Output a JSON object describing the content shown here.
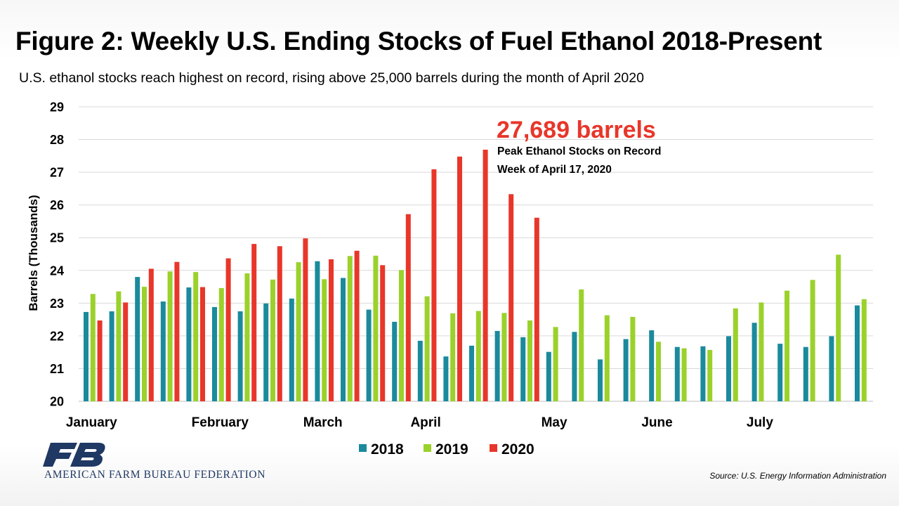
{
  "header": {
    "title": "Figure 2: Weekly U.S. Ending Stocks of Fuel Ethanol 2018-Present",
    "subtitle": "U.S. ethanol stocks reach highest on record, rising above 25,000 barrels during the month of April 2020"
  },
  "footer": {
    "organization": "AMERICAN FARM BUREAU FEDERATION",
    "source": "Source: U.S. Energy Information Administration"
  },
  "annotation": {
    "value": "27,689 barrels",
    "line1": "Peak Ethanol Stocks on Record",
    "line2": "Week of April 17, 2020"
  },
  "colors": {
    "2018": "#1a8a9c",
    "2019": "#9bd12b",
    "2020": "#e8362a",
    "annotation": "#e8362a",
    "grid": "#d9d9d9",
    "logo": "#1f3864"
  },
  "chart_data": {
    "type": "bar",
    "ylabel": "Barrels (Thousands)",
    "ylim": [
      20,
      29
    ],
    "yticks": [
      20,
      21,
      22,
      23,
      24,
      25,
      26,
      27,
      28,
      29
    ],
    "grid": true,
    "legend_position": "bottom",
    "month_labels": [
      {
        "label": "January",
        "week": 0
      },
      {
        "label": "February",
        "week": 5
      },
      {
        "label": "March",
        "week": 9
      },
      {
        "label": "April",
        "week": 13
      },
      {
        "label": "May",
        "week": 18
      },
      {
        "label": "June",
        "week": 22
      },
      {
        "label": "July",
        "week": 26
      }
    ],
    "weeks": 31,
    "series": [
      {
        "name": "2018",
        "values": [
          22.73,
          22.75,
          23.8,
          23.05,
          23.48,
          22.88,
          22.75,
          22.99,
          23.14,
          24.28,
          23.77,
          22.8,
          22.43,
          21.85,
          21.37,
          21.7,
          22.15,
          21.96,
          21.51,
          22.12,
          21.28,
          21.9,
          22.17,
          21.66,
          21.68,
          21.99,
          22.4,
          21.76,
          21.66,
          21.99,
          22.93
        ]
      },
      {
        "name": "2019",
        "values": [
          23.28,
          23.36,
          23.5,
          23.97,
          23.95,
          23.46,
          23.91,
          23.72,
          24.25,
          23.73,
          24.44,
          24.45,
          24.01,
          23.21,
          22.69,
          22.76,
          22.7,
          22.47,
          22.27,
          23.42,
          22.63,
          22.58,
          21.82,
          21.62,
          21.57,
          22.84,
          23.02,
          23.38,
          23.71,
          24.48,
          23.12
        ]
      },
      {
        "name": "2020",
        "values": [
          22.47,
          23.02,
          24.05,
          24.26,
          23.49,
          24.37,
          24.81,
          24.74,
          24.98,
          24.34,
          24.6,
          24.16,
          25.72,
          27.09,
          27.48,
          27.69,
          26.33,
          25.61
        ]
      }
    ]
  }
}
